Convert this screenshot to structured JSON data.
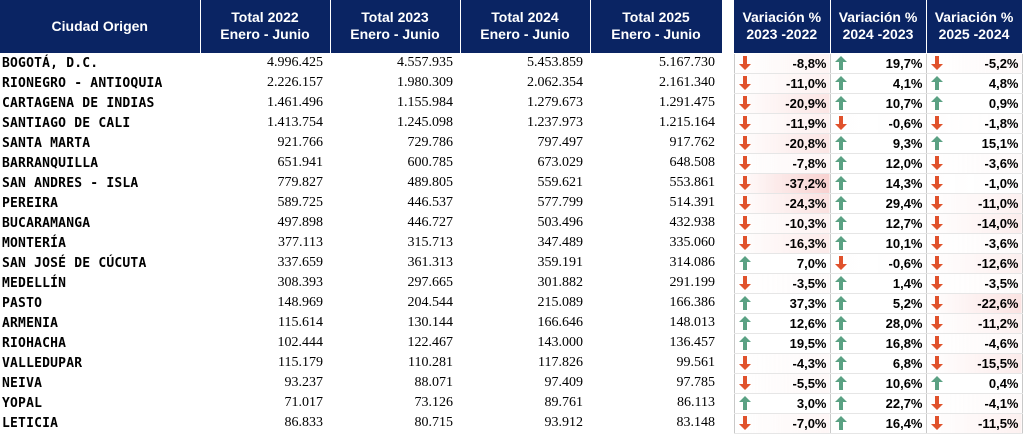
{
  "headers": {
    "city": "Ciudad Origen",
    "y2022": [
      "Total 2022",
      "Enero - Junio"
    ],
    "y2023": [
      "Total 2023",
      "Enero - Junio"
    ],
    "y2024": [
      "Total 2024",
      "Enero - Junio"
    ],
    "y2025": [
      "Total 2025",
      "Enero - Junio"
    ],
    "v1": [
      "Variación %",
      "2023 -2022"
    ],
    "v2": [
      "Variación %",
      "2024 -2023"
    ],
    "v3": [
      "Variación %",
      "2025 -2024"
    ]
  },
  "colors": {
    "header_bg": "#0a2463",
    "arrow_up": "#5aa183",
    "arrow_down": "#e0522c",
    "heat_negative": "#f6c5c3"
  },
  "rows": [
    {
      "city": "BOGOTÁ, D.C.",
      "t2022": "4.996.425",
      "t2023": "4.557.935",
      "t2024": "5.453.859",
      "t2025": "5.167.730",
      "v1": "-8,8%",
      "v2": "19,7%",
      "v3": "-5,2%"
    },
    {
      "city": "RIONEGRO - ANTIOQUIA",
      "t2022": "2.226.157",
      "t2023": "1.980.309",
      "t2024": "2.062.354",
      "t2025": "2.161.340",
      "v1": "-11,0%",
      "v2": "4,1%",
      "v3": "4,8%"
    },
    {
      "city": "CARTAGENA DE INDIAS",
      "t2022": "1.461.496",
      "t2023": "1.155.984",
      "t2024": "1.279.673",
      "t2025": "1.291.475",
      "v1": "-20,9%",
      "v2": "10,7%",
      "v3": "0,9%"
    },
    {
      "city": "SANTIAGO DE CALI",
      "t2022": "1.413.754",
      "t2023": "1.245.098",
      "t2024": "1.237.973",
      "t2025": "1.215.164",
      "v1": "-11,9%",
      "v2": "-0,6%",
      "v3": "-1,8%"
    },
    {
      "city": "SANTA MARTA",
      "t2022": "921.766",
      "t2023": "729.786",
      "t2024": "797.497",
      "t2025": "917.762",
      "v1": "-20,8%",
      "v2": "9,3%",
      "v3": "15,1%"
    },
    {
      "city": "BARRANQUILLA",
      "t2022": "651.941",
      "t2023": "600.785",
      "t2024": "673.029",
      "t2025": "648.508",
      "v1": "-7,8%",
      "v2": "12,0%",
      "v3": "-3,6%"
    },
    {
      "city": "SAN ANDRES - ISLA",
      "t2022": "779.827",
      "t2023": "489.805",
      "t2024": "559.621",
      "t2025": "553.861",
      "v1": "-37,2%",
      "v2": "14,3%",
      "v3": "-1,0%"
    },
    {
      "city": "PEREIRA",
      "t2022": "589.725",
      "t2023": "446.537",
      "t2024": "577.799",
      "t2025": "514.391",
      "v1": "-24,3%",
      "v2": "29,4%",
      "v3": "-11,0%"
    },
    {
      "city": "BUCARAMANGA",
      "t2022": "497.898",
      "t2023": "446.727",
      "t2024": "503.496",
      "t2025": "432.938",
      "v1": "-10,3%",
      "v2": "12,7%",
      "v3": "-14,0%"
    },
    {
      "city": "MONTERÍA",
      "t2022": "377.113",
      "t2023": "315.713",
      "t2024": "347.489",
      "t2025": "335.060",
      "v1": "-16,3%",
      "v2": "10,1%",
      "v3": "-3,6%"
    },
    {
      "city": "SAN JOSÉ DE CÚCUTA",
      "t2022": "337.659",
      "t2023": "361.313",
      "t2024": "359.191",
      "t2025": "314.086",
      "v1": "7,0%",
      "v2": "-0,6%",
      "v3": "-12,6%"
    },
    {
      "city": "MEDELLÍN",
      "t2022": "308.393",
      "t2023": "297.665",
      "t2024": "301.882",
      "t2025": "291.199",
      "v1": "-3,5%",
      "v2": "1,4%",
      "v3": "-3,5%"
    },
    {
      "city": "PASTO",
      "t2022": "148.969",
      "t2023": "204.544",
      "t2024": "215.089",
      "t2025": "166.386",
      "v1": "37,3%",
      "v2": "5,2%",
      "v3": "-22,6%"
    },
    {
      "city": "ARMENIA",
      "t2022": "115.614",
      "t2023": "130.144",
      "t2024": "166.646",
      "t2025": "148.013",
      "v1": "12,6%",
      "v2": "28,0%",
      "v3": "-11,2%"
    },
    {
      "city": "RIOHACHA",
      "t2022": "102.444",
      "t2023": "122.467",
      "t2024": "143.000",
      "t2025": "136.457",
      "v1": "19,5%",
      "v2": "16,8%",
      "v3": "-4,6%"
    },
    {
      "city": "VALLEDUPAR",
      "t2022": "115.179",
      "t2023": "110.281",
      "t2024": "117.826",
      "t2025": "99.561",
      "v1": "-4,3%",
      "v2": "6,8%",
      "v3": "-15,5%"
    },
    {
      "city": "NEIVA",
      "t2022": "93.237",
      "t2023": "88.071",
      "t2024": "97.409",
      "t2025": "97.785",
      "v1": "-5,5%",
      "v2": "10,6%",
      "v3": "0,4%"
    },
    {
      "city": "YOPAL",
      "t2022": "71.017",
      "t2023": "73.126",
      "t2024": "89.761",
      "t2025": "86.113",
      "v1": "3,0%",
      "v2": "22,7%",
      "v3": "-4,1%"
    },
    {
      "city": "LETICIA",
      "t2022": "86.833",
      "t2023": "80.715",
      "t2024": "93.912",
      "t2025": "83.148",
      "v1": "-7,0%",
      "v2": "16,4%",
      "v3": "-11,5%"
    }
  ]
}
